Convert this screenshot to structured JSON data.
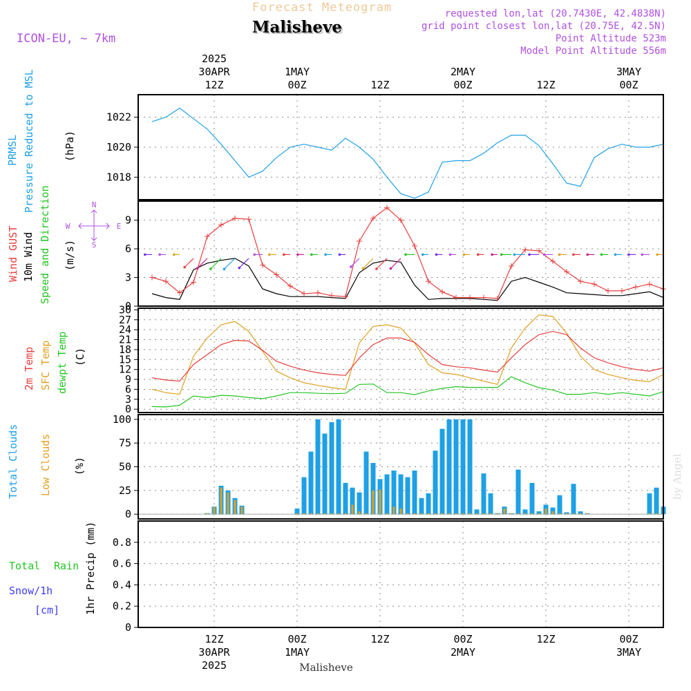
{
  "header": {
    "meteogram_label": "Forecast Meteogram",
    "location": "Malisheve",
    "model": "ICON-EU, ~ 7km",
    "requested": "requested lon,lat (20.7430E, 42.4838N)",
    "closest": "grid point closest lon,lat (20.75E, 42.5N)",
    "point_altitude": "Point Altitude 523m",
    "model_altitude": "Model Point Altitude 556m",
    "credit": "by Angel",
    "footer_location": "Malisheve"
  },
  "colors": {
    "pressure": "#1ea0e6",
    "gust": "#e83c3c",
    "wind": "#000000",
    "arrows": "#22c522",
    "compass": "#b050e0",
    "temp2m": "#e83c3c",
    "sfc": "#e0a020",
    "dewpt": "#22c522",
    "total_clouds": "#1ea0e6",
    "low_clouds": "#e0a020",
    "rain": "#22c522",
    "snow": "#3c3cf0",
    "header_purple": "#b050e0",
    "header_orange": "#f0c896"
  },
  "chart_data": [
    {
      "type": "line",
      "x": [
        "2025-04-30T03Z",
        "2025-04-30T05Z",
        "2025-04-30T07Z",
        "2025-04-30T09Z",
        "2025-04-30T11Z",
        "2025-04-30T13Z",
        "2025-04-30T15Z",
        "2025-04-30T17Z",
        "2025-04-30T19Z",
        "2025-04-30T21Z",
        "2025-04-30T23Z",
        "2025-05-01T01Z",
        "2025-05-01T03Z",
        "2025-05-01T05Z",
        "2025-05-01T07Z",
        "2025-05-01T09Z",
        "2025-05-01T11Z",
        "2025-05-01T13Z",
        "2025-05-01T15Z",
        "2025-05-01T17Z",
        "2025-05-01T19Z",
        "2025-05-01T21Z",
        "2025-05-01T23Z",
        "2025-05-02T01Z",
        "2025-05-02T03Z",
        "2025-05-02T05Z",
        "2025-05-02T07Z",
        "2025-05-02T09Z",
        "2025-05-02T11Z",
        "2025-05-02T13Z",
        "2025-05-02T15Z",
        "2025-05-02T17Z",
        "2025-05-02T19Z",
        "2025-05-02T21Z",
        "2025-05-02T23Z",
        "2025-05-03T01Z",
        "2025-05-03T03Z",
        "2025-05-03T05Z"
      ],
      "series": [
        {
          "name": "PRMSL Pressure Reduced to MSL",
          "values": [
            1021.7,
            1022.0,
            1022.6,
            1021.9,
            1021.2,
            1020.2,
            1019.1,
            1018.0,
            1018.4,
            1019.3,
            1020.0,
            1020.2,
            1020.0,
            1019.8,
            1020.6,
            1020.0,
            1019.2,
            1018.0,
            1016.9,
            1016.6,
            1017.0,
            1019.0,
            1019.1,
            1019.1,
            1019.6,
            1020.3,
            1020.8,
            1020.8,
            1020.1,
            1018.9,
            1017.6,
            1017.4,
            1019.3,
            1019.9,
            1020.2,
            1020.0,
            1020.0,
            1020.2
          ]
        }
      ],
      "xlabel": "",
      "ylabel": "(hPa)",
      "ylim": [
        1016.5,
        1023.5
      ],
      "yticks": [
        1018,
        1020,
        1022
      ],
      "grid": true
    },
    {
      "type": "line",
      "x": [
        "2025-04-30T03Z",
        "2025-04-30T05Z",
        "2025-04-30T07Z",
        "2025-04-30T09Z",
        "2025-04-30T11Z",
        "2025-04-30T13Z",
        "2025-04-30T15Z",
        "2025-04-30T17Z",
        "2025-04-30T19Z",
        "2025-04-30T21Z",
        "2025-04-30T23Z",
        "2025-05-01T01Z",
        "2025-05-01T03Z",
        "2025-05-01T05Z",
        "2025-05-01T07Z",
        "2025-05-01T09Z",
        "2025-05-01T11Z",
        "2025-05-01T13Z",
        "2025-05-01T15Z",
        "2025-05-01T17Z",
        "2025-05-01T19Z",
        "2025-05-01T21Z",
        "2025-05-01T23Z",
        "2025-05-02T01Z",
        "2025-05-02T03Z",
        "2025-05-02T05Z",
        "2025-05-02T07Z",
        "2025-05-02T09Z",
        "2025-05-02T11Z",
        "2025-05-02T13Z",
        "2025-05-02T15Z",
        "2025-05-02T17Z",
        "2025-05-02T19Z",
        "2025-05-02T21Z",
        "2025-05-02T23Z",
        "2025-05-03T01Z",
        "2025-05-03T03Z",
        "2025-05-03T05Z"
      ],
      "series": [
        {
          "name": "Wind GUST",
          "values": [
            3.0,
            2.6,
            1.4,
            2.5,
            7.3,
            8.5,
            9.2,
            9.1,
            4.3,
            3.3,
            2.1,
            1.3,
            1.4,
            1.1,
            1.0,
            6.8,
            9.2,
            10.3,
            9.0,
            6.3,
            2.6,
            1.5,
            0.9,
            0.9,
            0.9,
            0.8,
            4.2,
            5.9,
            5.8,
            4.7,
            3.6,
            2.6,
            2.3,
            1.6,
            1.6,
            2.0,
            2.3,
            1.8
          ]
        },
        {
          "name": "10m Wind",
          "values": [
            1.3,
            0.9,
            0.7,
            3.8,
            4.5,
            4.8,
            5.0,
            4.2,
            1.8,
            1.3,
            1.0,
            1.0,
            1.0,
            0.9,
            0.8,
            3.5,
            4.5,
            4.8,
            4.6,
            2.2,
            0.7,
            0.8,
            0.8,
            0.8,
            0.7,
            0.6,
            2.6,
            3.0,
            2.5,
            2.0,
            1.4,
            1.3,
            1.2,
            1.1,
            1.1,
            1.3,
            1.5,
            0.9
          ]
        }
      ],
      "xlabel": "",
      "ylabel": "(m/s)",
      "ylim": [
        0,
        11
      ],
      "yticks": [
        0,
        3,
        6,
        9
      ],
      "grid": true,
      "compass": [
        "N",
        "W",
        "E",
        "S"
      ]
    },
    {
      "type": "line",
      "x": [
        "2025-04-30T03Z",
        "2025-04-30T05Z",
        "2025-04-30T07Z",
        "2025-04-30T09Z",
        "2025-04-30T11Z",
        "2025-04-30T13Z",
        "2025-04-30T15Z",
        "2025-04-30T17Z",
        "2025-04-30T19Z",
        "2025-04-30T21Z",
        "2025-04-30T23Z",
        "2025-05-01T01Z",
        "2025-05-01T03Z",
        "2025-05-01T05Z",
        "2025-05-01T07Z",
        "2025-05-01T09Z",
        "2025-05-01T11Z",
        "2025-05-01T13Z",
        "2025-05-01T15Z",
        "2025-05-01T17Z",
        "2025-05-01T19Z",
        "2025-05-01T21Z",
        "2025-05-01T23Z",
        "2025-05-02T01Z",
        "2025-05-02T03Z",
        "2025-05-02T05Z",
        "2025-05-02T07Z",
        "2025-05-02T09Z",
        "2025-05-02T11Z",
        "2025-05-02T13Z",
        "2025-05-02T15Z",
        "2025-05-02T17Z",
        "2025-05-02T19Z",
        "2025-05-02T21Z",
        "2025-05-02T23Z",
        "2025-05-03T01Z",
        "2025-05-03T03Z",
        "2025-05-03T05Z"
      ],
      "series": [
        {
          "name": "2m Temp",
          "values": [
            9.5,
            8.8,
            8.5,
            13.5,
            16.5,
            19.5,
            20.8,
            20.6,
            17.8,
            14.5,
            13.0,
            11.8,
            11.0,
            10.5,
            10.2,
            15.5,
            19.5,
            21.5,
            21.5,
            20.2,
            16.5,
            13.5,
            12.8,
            12.5,
            11.8,
            11.2,
            15.5,
            19.5,
            22.5,
            23.5,
            22.5,
            18.5,
            15.5,
            14.0,
            12.8,
            12.0,
            11.5,
            12.5
          ]
        },
        {
          "name": "SFC Temp",
          "values": [
            6.0,
            5.0,
            4.5,
            16.0,
            21.5,
            25.5,
            26.5,
            23.5,
            17.5,
            11.5,
            9.5,
            8.0,
            7.2,
            6.5,
            6.0,
            20.0,
            25.0,
            25.5,
            24.5,
            20.0,
            13.5,
            11.0,
            10.5,
            9.5,
            8.5,
            7.5,
            18.5,
            24.5,
            28.5,
            28.0,
            23.0,
            16.0,
            12.0,
            10.5,
            9.5,
            8.7,
            8.3,
            10.5
          ]
        },
        {
          "name": "dewpt Temp",
          "values": [
            0.8,
            0.7,
            1.2,
            4.0,
            3.5,
            4.2,
            4.0,
            3.5,
            3.2,
            4.0,
            5.0,
            5.0,
            4.8,
            4.7,
            4.8,
            7.5,
            7.6,
            5.0,
            5.0,
            4.4,
            5.5,
            6.3,
            6.8,
            6.6,
            6.6,
            6.6,
            9.8,
            8.0,
            6.5,
            5.8,
            4.5,
            4.5,
            5.0,
            4.5,
            5.0,
            4.5,
            4.0,
            5.3
          ]
        }
      ],
      "xlabel": "",
      "ylabel": "(C)",
      "ylim": [
        -1,
        30.5
      ],
      "yticks": [
        0,
        3,
        6,
        9,
        12,
        15,
        18,
        21,
        24,
        27,
        30
      ],
      "grid": true
    },
    {
      "type": "bar",
      "categories": [
        "2025-04-30T11Z",
        "2025-04-30T12Z",
        "2025-04-30T13Z",
        "2025-04-30T14Z",
        "2025-04-30T15Z",
        "2025-04-30T16Z",
        "2025-05-01T00Z",
        "2025-05-01T01Z",
        "2025-05-01T02Z",
        "2025-05-01T03Z",
        "2025-05-01T04Z",
        "2025-05-01T05Z",
        "2025-05-01T06Z",
        "2025-05-01T07Z",
        "2025-05-01T08Z",
        "2025-05-01T09Z",
        "2025-05-01T10Z",
        "2025-05-01T11Z",
        "2025-05-01T12Z",
        "2025-05-01T13Z",
        "2025-05-01T14Z",
        "2025-05-01T15Z",
        "2025-05-01T16Z",
        "2025-05-01T17Z",
        "2025-05-01T18Z",
        "2025-05-01T19Z",
        "2025-05-01T20Z",
        "2025-05-01T21Z",
        "2025-05-01T22Z",
        "2025-05-01T23Z",
        "2025-05-02T00Z",
        "2025-05-02T01Z",
        "2025-05-02T02Z",
        "2025-05-02T03Z",
        "2025-05-02T04Z",
        "2025-05-02T05Z",
        "2025-05-02T06Z",
        "2025-05-02T07Z",
        "2025-05-02T08Z",
        "2025-05-02T09Z",
        "2025-05-02T10Z",
        "2025-05-02T11Z",
        "2025-05-02T12Z",
        "2025-05-02T13Z",
        "2025-05-02T14Z",
        "2025-05-02T15Z",
        "2025-05-02T16Z",
        "2025-05-02T17Z",
        "2025-05-02T18Z",
        "2025-05-03T03Z",
        "2025-05-03T04Z",
        "2025-05-03T05Z"
      ],
      "series": [
        {
          "name": "Total Clouds",
          "values": [
            1,
            8,
            30,
            25,
            17,
            9,
            6,
            39,
            66,
            100,
            85,
            97,
            100,
            33,
            28,
            23,
            66,
            54,
            37,
            42,
            46,
            42,
            39,
            46,
            17,
            22,
            67,
            90,
            100,
            100,
            100,
            100,
            5,
            43,
            22,
            1,
            8,
            1,
            47,
            5,
            33,
            3,
            10,
            7,
            20,
            2,
            32,
            3,
            1,
            22,
            28,
            8
          ]
        },
        {
          "name": "Low Clouds",
          "values": [
            1,
            8,
            28,
            23,
            15,
            8,
            1,
            1,
            1,
            1,
            1,
            1,
            1,
            1,
            10,
            3,
            1,
            25,
            26,
            1,
            8,
            6,
            1,
            1,
            1,
            1,
            1,
            1,
            1,
            1,
            1,
            1,
            1,
            1,
            1,
            1,
            6,
            1,
            1,
            1,
            1,
            1,
            6,
            3,
            1,
            1,
            1,
            1,
            1,
            1,
            1,
            1
          ]
        }
      ],
      "xlabel": "",
      "ylabel": "(%)",
      "ylim": [
        -5,
        105
      ],
      "yticks": [
        0,
        25,
        50,
        75,
        100
      ],
      "grid": true
    },
    {
      "type": "bar",
      "categories": [],
      "series": [
        {
          "name": "Total Rain",
          "values": []
        },
        {
          "name": "Snow/1h [cm]",
          "values": []
        }
      ],
      "xlabel": "",
      "ylabel": "1hr Precip (mm)",
      "ylim": [
        0,
        1.0
      ],
      "yticks": [
        0,
        0.2,
        0.4,
        0.6,
        0.8
      ],
      "grid": true
    }
  ],
  "axis": {
    "top_ticks": [
      {
        "t": "2025-04-30T12Z",
        "lines": [
          "2025",
          "30APR",
          "12Z"
        ]
      },
      {
        "t": "2025-05-01T00Z",
        "lines": [
          "1MAY",
          "00Z"
        ]
      },
      {
        "t": "2025-05-01T12Z",
        "lines": [
          "12Z"
        ]
      },
      {
        "t": "2025-05-02T00Z",
        "lines": [
          "2MAY",
          "00Z"
        ]
      },
      {
        "t": "2025-05-02T12Z",
        "lines": [
          "12Z"
        ]
      },
      {
        "t": "2025-05-03T00Z",
        "lines": [
          "3MAY",
          "00Z"
        ]
      }
    ],
    "bottom_ticks": [
      {
        "t": "2025-04-30T12Z",
        "lines": [
          "12Z",
          "30APR",
          "2025"
        ]
      },
      {
        "t": "2025-05-01T00Z",
        "lines": [
          "00Z",
          "1MAY"
        ]
      },
      {
        "t": "2025-05-01T12Z",
        "lines": [
          "12Z"
        ]
      },
      {
        "t": "2025-05-02T00Z",
        "lines": [
          "00Z",
          "2MAY"
        ]
      },
      {
        "t": "2025-05-02T12Z",
        "lines": [
          "12Z"
        ]
      },
      {
        "t": "2025-05-03T00Z",
        "lines": [
          "00Z",
          "3MAY"
        ]
      }
    ]
  },
  "panel_labels": {
    "pressure": [
      "PRMSL",
      "Pressure Reduced to MSL"
    ],
    "wind": [
      "Wind GUST",
      "10m Wind",
      "Speed and Direction"
    ],
    "temp": [
      "2m Temp",
      "SFC Temp",
      "dewpt Temp"
    ],
    "clouds": [
      "Total Clouds",
      "Low Clouds"
    ],
    "precip": [
      "Total",
      "Rain",
      "Snow/1h",
      "[cm]"
    ]
  }
}
